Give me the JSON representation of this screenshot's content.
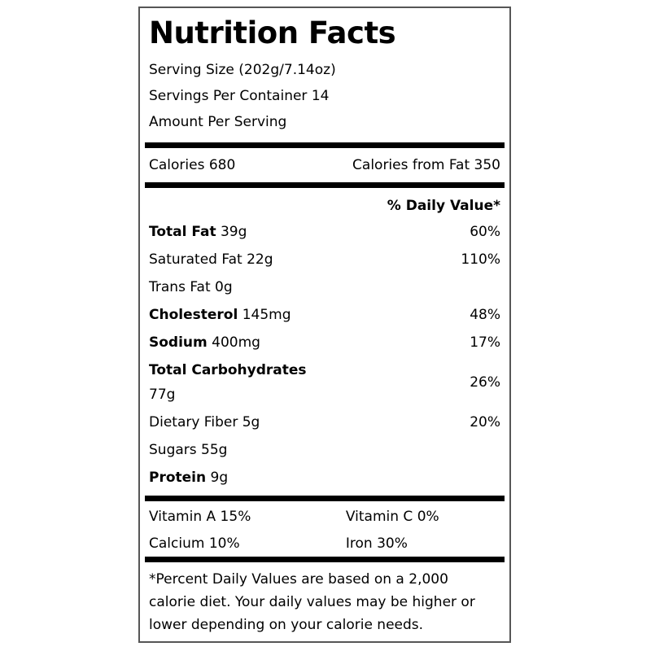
{
  "label": {
    "title": "Nutrition Facts",
    "serving_size": "Serving Size (202g/7.14oz)",
    "servings_per_container": "Servings Per Container 14",
    "amount_per_serving": "Amount Per Serving",
    "calories": "Calories 680",
    "calories_from_fat": "Calories from Fat 350",
    "daily_value_header": "% Daily Value*",
    "nutrients": [
      {
        "name": "Total Fat",
        "amount": "39g",
        "dv": "60%"
      },
      {
        "name": "Saturated Fat",
        "amount": "22g",
        "dv": "110%"
      },
      {
        "name": "Trans Fat",
        "amount": "0g",
        "dv": ""
      },
      {
        "name": "Cholesterol",
        "amount": "145mg",
        "dv": "48%"
      },
      {
        "name": "Sodium",
        "amount": "400mg",
        "dv": "17%"
      },
      {
        "name": "Total Carbohydrates",
        "amount": "77g",
        "dv": "26%"
      },
      {
        "name": "Dietary Fiber",
        "amount": "5g",
        "dv": "20%"
      },
      {
        "name": "Sugars",
        "amount": "55g",
        "dv": ""
      },
      {
        "name": "Protein",
        "amount": "9g",
        "dv": ""
      }
    ],
    "vitamins": [
      "Vitamin A 15%",
      "Vitamin C 0%",
      "Calcium 10%",
      "Iron 30%"
    ],
    "footnote_lines": [
      "*Percent Daily Values are based on a 2,000",
      "calorie diet. Your daily values may be higher or",
      "lower depending on your calorie needs."
    ],
    "colors": {
      "text": "#000000",
      "separator_bar": "#000000",
      "border": "#565656",
      "background": "#ffffff"
    }
  }
}
